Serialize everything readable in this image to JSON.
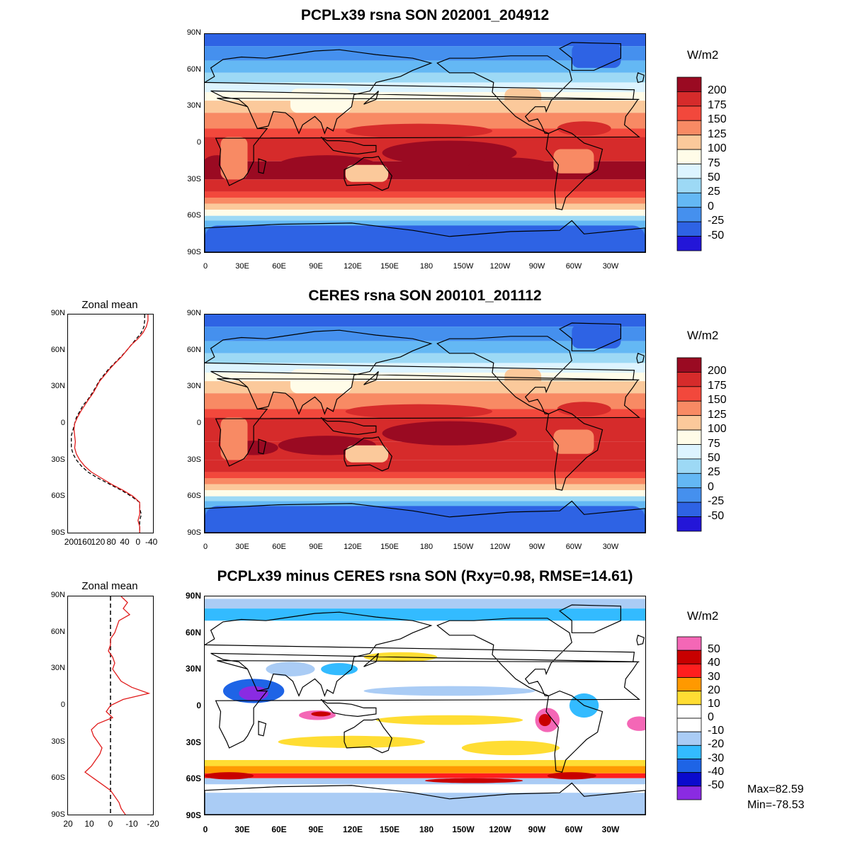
{
  "panels": [
    {
      "title": "PCPLx39 rsna SON 202001_204912",
      "type": "model",
      "legend": {
        "unit": "W/m2",
        "labels": [
          "200",
          "175",
          "150",
          "125",
          "100",
          "75",
          "50",
          "25",
          "0",
          "-25",
          "-50"
        ],
        "colors": [
          "#9a0a22",
          "#d62b2b",
          "#f2483c",
          "#f88a64",
          "#fbc99b",
          "#fffce8",
          "#ddf4ff",
          "#9dd9f5",
          "#64b8f4",
          "#4590ee",
          "#2e63e4",
          "#2316d8"
        ]
      }
    },
    {
      "title": "CERES rsna SON 200101_201112",
      "type": "obs",
      "legend": {
        "unit": "W/m2",
        "labels": [
          "200",
          "175",
          "150",
          "125",
          "100",
          "75",
          "50",
          "25",
          "0",
          "-25",
          "-50"
        ],
        "colors": [
          "#9a0a22",
          "#d62b2b",
          "#f2483c",
          "#f88a64",
          "#fbc99b",
          "#fffce8",
          "#ddf4ff",
          "#9dd9f5",
          "#64b8f4",
          "#4590ee",
          "#2e63e4",
          "#2316d8"
        ]
      },
      "zonal": {
        "title": "Zonal mean",
        "x_ticks": [
          "200",
          "160",
          "120",
          "80",
          "40",
          "0",
          "-40"
        ],
        "xlim": [
          210,
          -45
        ],
        "lat": [
          90,
          85,
          80,
          75,
          70,
          65,
          60,
          55,
          50,
          45,
          40,
          35,
          30,
          25,
          20,
          15,
          10,
          5,
          0,
          -5,
          -10,
          -15,
          -20,
          -25,
          -30,
          -35,
          -40,
          -45,
          -50,
          -55,
          -60,
          -65,
          -70,
          -75,
          -80,
          -85,
          -90
        ],
        "model": [
          -30,
          -30,
          -25,
          -15,
          0,
          20,
          35,
          50,
          68,
          85,
          100,
          115,
          125,
          135,
          148,
          160,
          172,
          182,
          190,
          192,
          190,
          188,
          190,
          185,
          175,
          160,
          140,
          110,
          80,
          45,
          15,
          -5,
          -5,
          -5,
          0,
          -5,
          -5
        ],
        "obs": [
          -20,
          -20,
          -18,
          -10,
          5,
          20,
          35,
          52,
          70,
          88,
          103,
          117,
          127,
          138,
          150,
          165,
          175,
          185,
          190,
          195,
          200,
          200,
          200,
          195,
          185,
          170,
          150,
          120,
          85,
          50,
          20,
          -5,
          -5,
          -10,
          -5,
          -5,
          -5
        ]
      }
    },
    {
      "title": "PCPLx39 minus CERES rsna SON (Rxy=0.98, RMSE=14.61)",
      "type": "diff",
      "legend": {
        "unit": "W/m2",
        "labels": [
          "50",
          "40",
          "30",
          "20",
          "10",
          "0",
          "-10",
          "-20",
          "-30",
          "-40",
          "-50"
        ],
        "colors": [
          "#f467b6",
          "#c80000",
          "#ff1e1e",
          "#ff9900",
          "#ffdd33",
          "#ffffff",
          "#ffffff",
          "#aaccf5",
          "#33bbff",
          "#1e64e6",
          "#0a0acd",
          "#8a2be2"
        ]
      },
      "zonal": {
        "title": "Zonal mean",
        "x_ticks": [
          "20",
          "10",
          "0",
          "-10",
          "-20"
        ],
        "xlim": [
          20,
          -20
        ],
        "lat": [
          90,
          85,
          80,
          75,
          70,
          65,
          60,
          55,
          50,
          45,
          40,
          35,
          30,
          25,
          20,
          15,
          10,
          5,
          0,
          -5,
          -10,
          -15,
          -20,
          -25,
          -30,
          -35,
          -40,
          -45,
          -50,
          -55,
          -60,
          -65,
          -70,
          -75,
          -80,
          -85,
          -90
        ],
        "diff": [
          -5,
          -8,
          -6,
          -9,
          -4,
          -3,
          -2,
          0,
          0,
          1,
          -1,
          -2,
          -1,
          -3,
          -5,
          -10,
          -18,
          -6,
          0,
          2,
          -1,
          6,
          9,
          8,
          6,
          4,
          5,
          7,
          9,
          12,
          8,
          4,
          0,
          -2,
          -4,
          -5,
          -7
        ]
      },
      "stats": {
        "max": "Max=82.59",
        "min": "Min=-78.53"
      }
    }
  ],
  "map_axes": {
    "lat_ticks": [
      "90N",
      "60N",
      "30N",
      "0",
      "30S",
      "60S",
      "90S"
    ],
    "lon_ticks": [
      "0",
      "30E",
      "60E",
      "90E",
      "120E",
      "150E",
      "180",
      "150W",
      "120W",
      "90W",
      "60W",
      "30W"
    ]
  }
}
